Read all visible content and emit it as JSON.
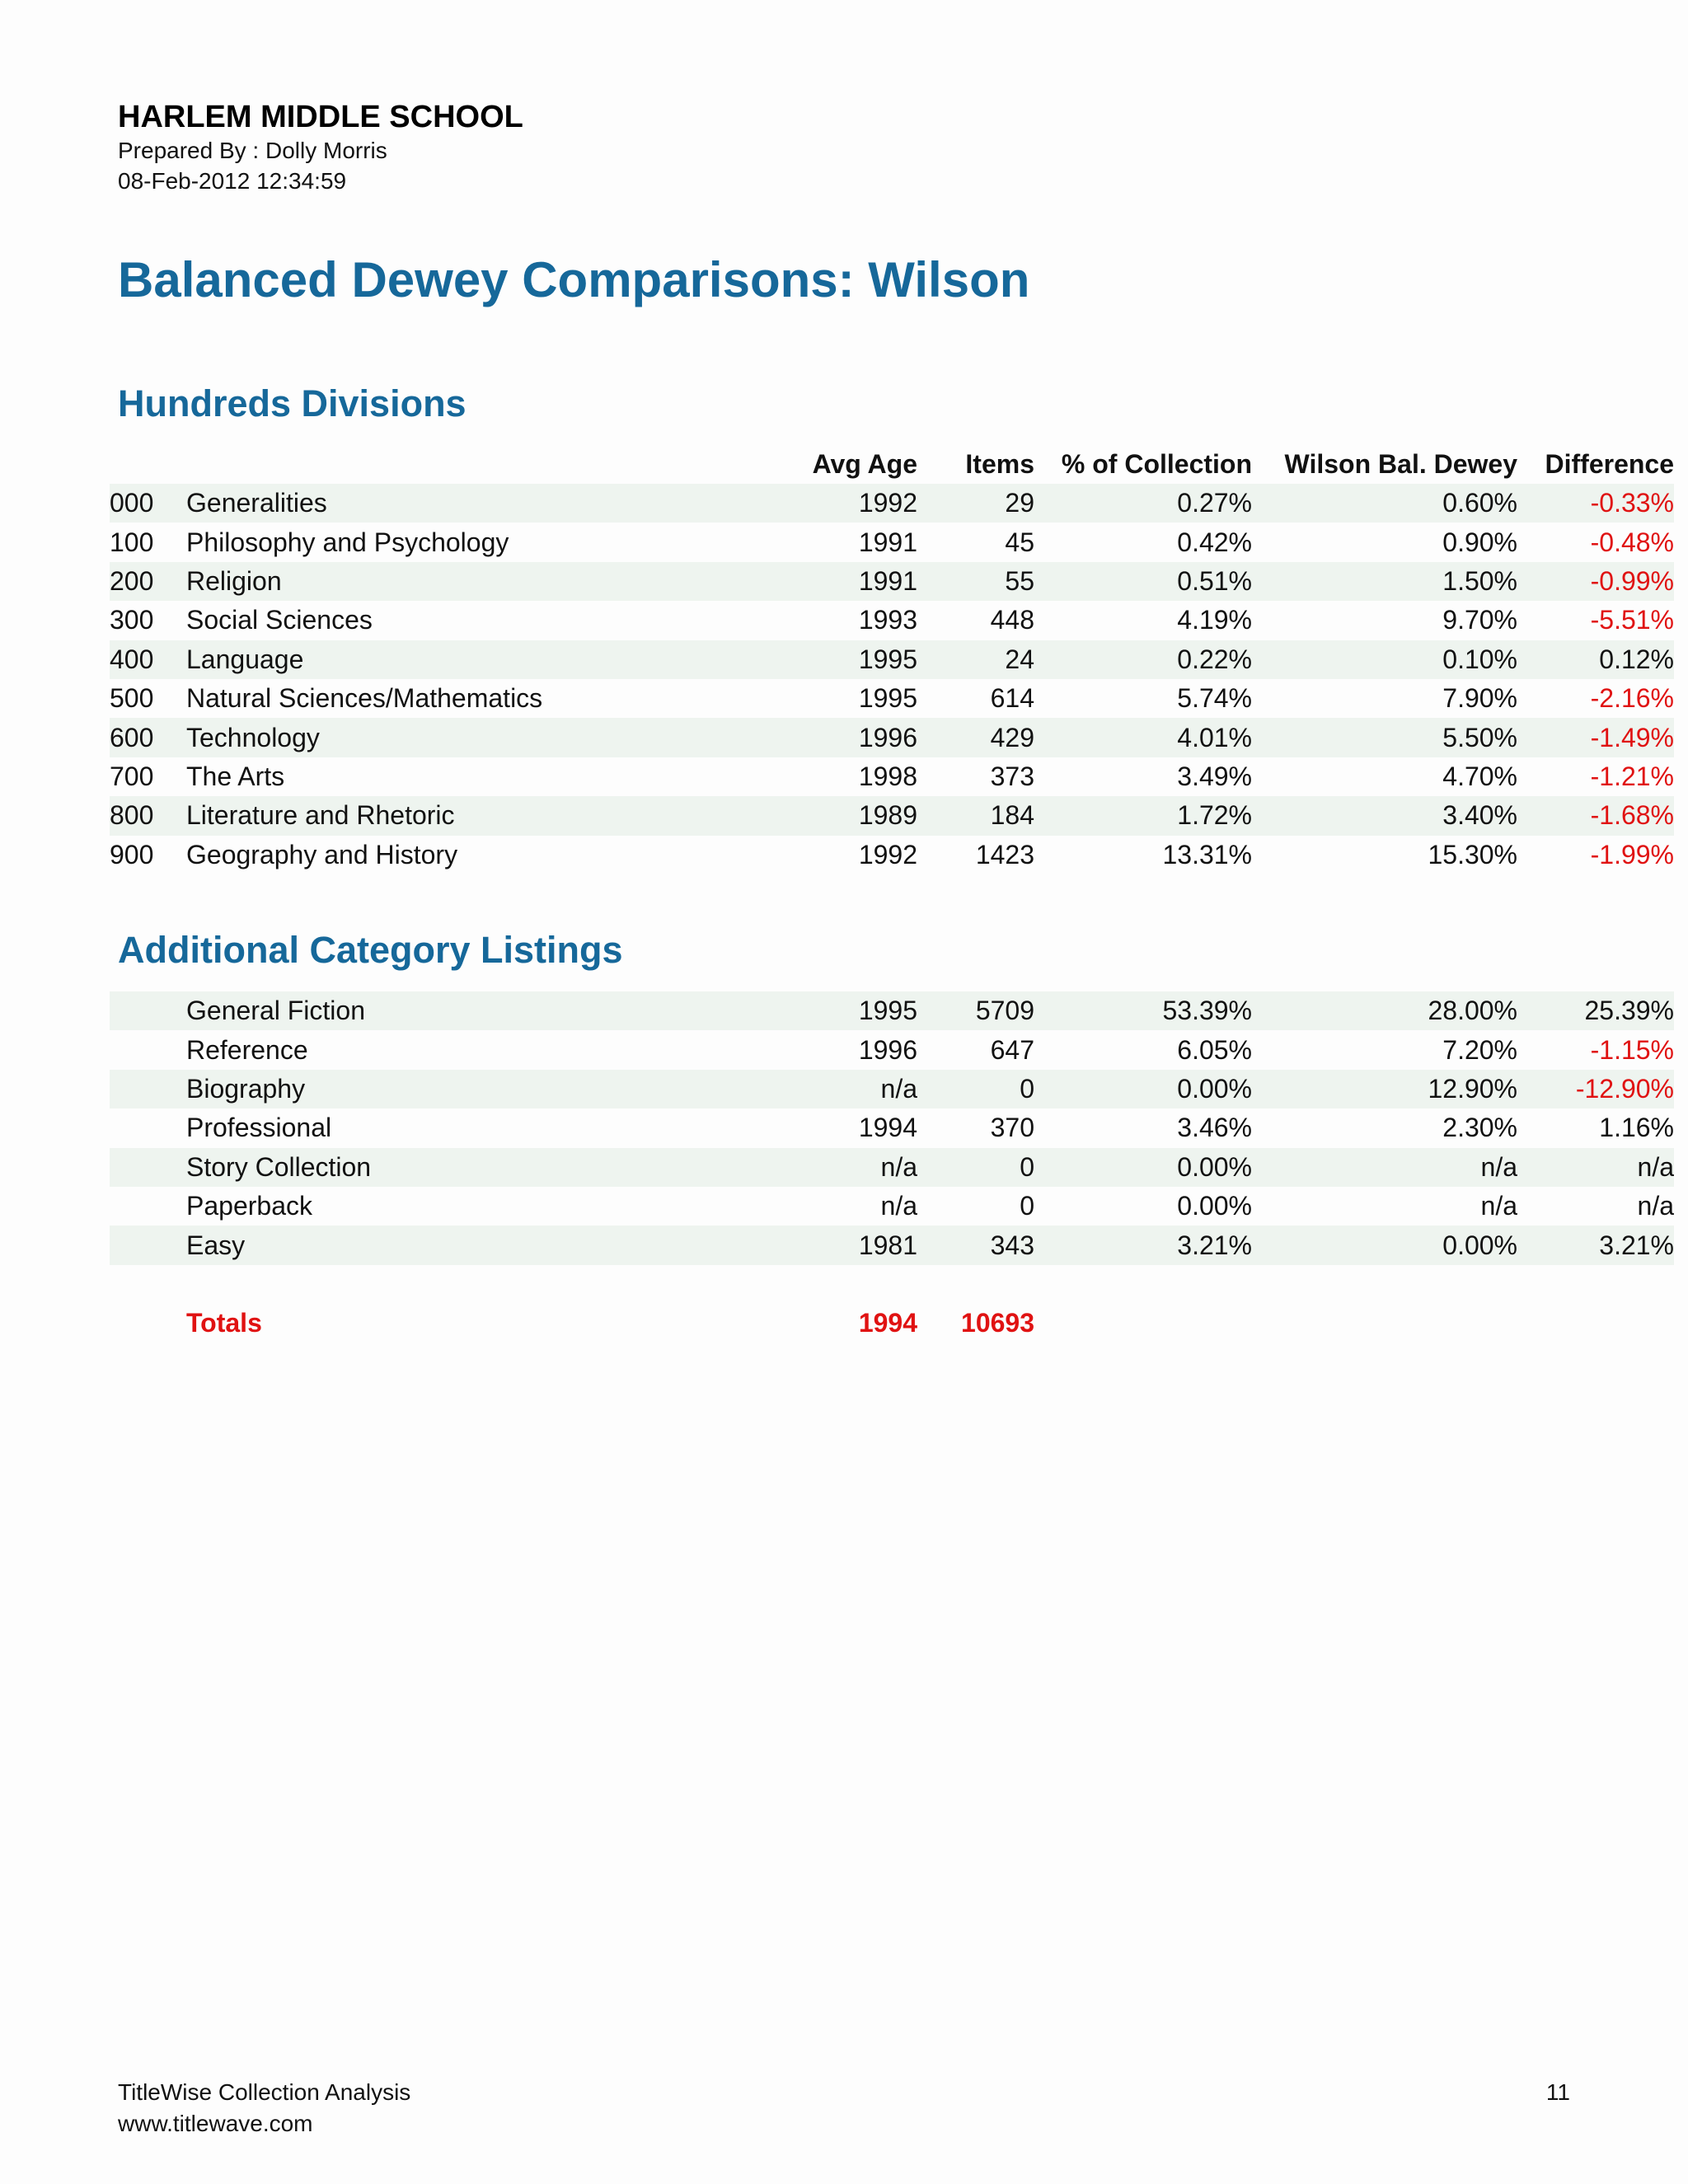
{
  "header": {
    "school_name": "HARLEM MIDDLE SCHOOL",
    "prepared_by": "Prepared By : Dolly Morris",
    "date": "08-Feb-2012 12:34:59"
  },
  "title": "Balanced Dewey Comparisons: Wilson",
  "columns": {
    "avg_age": "Avg Age",
    "items": "Items",
    "pct_collection": "% of Collection",
    "wilson": "Wilson Bal. Dewey",
    "difference": "Difference"
  },
  "hundreds": {
    "title": "Hundreds Divisions",
    "rows": [
      {
        "code": "000",
        "name": "Generalities",
        "avg_age": "1992",
        "items": "29",
        "pct": "0.27%",
        "wilson": "0.60%",
        "diff": "-0.33%"
      },
      {
        "code": "100",
        "name": "Philosophy and Psychology",
        "avg_age": "1991",
        "items": "45",
        "pct": "0.42%",
        "wilson": "0.90%",
        "diff": "-0.48%"
      },
      {
        "code": "200",
        "name": "Religion",
        "avg_age": "1991",
        "items": "55",
        "pct": "0.51%",
        "wilson": "1.50%",
        "diff": "-0.99%"
      },
      {
        "code": "300",
        "name": "Social Sciences",
        "avg_age": "1993",
        "items": "448",
        "pct": "4.19%",
        "wilson": "9.70%",
        "diff": "-5.51%"
      },
      {
        "code": "400",
        "name": "Language",
        "avg_age": "1995",
        "items": "24",
        "pct": "0.22%",
        "wilson": "0.10%",
        "diff": "0.12%"
      },
      {
        "code": "500",
        "name": "Natural Sciences/Mathematics",
        "avg_age": "1995",
        "items": "614",
        "pct": "5.74%",
        "wilson": "7.90%",
        "diff": "-2.16%"
      },
      {
        "code": "600",
        "name": "Technology",
        "avg_age": "1996",
        "items": "429",
        "pct": "4.01%",
        "wilson": "5.50%",
        "diff": "-1.49%"
      },
      {
        "code": "700",
        "name": "The Arts",
        "avg_age": "1998",
        "items": "373",
        "pct": "3.49%",
        "wilson": "4.70%",
        "diff": "-1.21%"
      },
      {
        "code": "800",
        "name": "Literature and Rhetoric",
        "avg_age": "1989",
        "items": "184",
        "pct": "1.72%",
        "wilson": "3.40%",
        "diff": "-1.68%"
      },
      {
        "code": "900",
        "name": "Geography and History",
        "avg_age": "1992",
        "items": "1423",
        "pct": "13.31%",
        "wilson": "15.30%",
        "diff": "-1.99%"
      }
    ]
  },
  "additional": {
    "title": "Additional Category Listings",
    "rows": [
      {
        "name": "General Fiction",
        "avg_age": "1995",
        "items": "5709",
        "pct": "53.39%",
        "wilson": "28.00%",
        "diff": "25.39%"
      },
      {
        "name": "Reference",
        "avg_age": "1996",
        "items": "647",
        "pct": "6.05%",
        "wilson": "7.20%",
        "diff": "-1.15%"
      },
      {
        "name": "Biography",
        "avg_age": "n/a",
        "items": "0",
        "pct": "0.00%",
        "wilson": "12.90%",
        "diff": "-12.90%"
      },
      {
        "name": "Professional",
        "avg_age": "1994",
        "items": "370",
        "pct": "3.46%",
        "wilson": "2.30%",
        "diff": "1.16%"
      },
      {
        "name": "Story Collection",
        "avg_age": "n/a",
        "items": "0",
        "pct": "0.00%",
        "wilson": "n/a",
        "diff": "n/a"
      },
      {
        "name": "Paperback",
        "avg_age": "n/a",
        "items": "0",
        "pct": "0.00%",
        "wilson": "n/a",
        "diff": "n/a"
      },
      {
        "name": "Easy",
        "avg_age": "1981",
        "items": "343",
        "pct": "3.21%",
        "wilson": "0.00%",
        "diff": "3.21%"
      }
    ]
  },
  "totals": {
    "label": "Totals",
    "avg_age": "1994",
    "items": "10693"
  },
  "footer": {
    "product": "TitleWise Collection Analysis",
    "url": "www.titlewave.com",
    "page_number": "11"
  },
  "colors": {
    "heading_blue": "#16689a",
    "negative_red": "#e01212",
    "stripe_green": "#eef4ef"
  }
}
